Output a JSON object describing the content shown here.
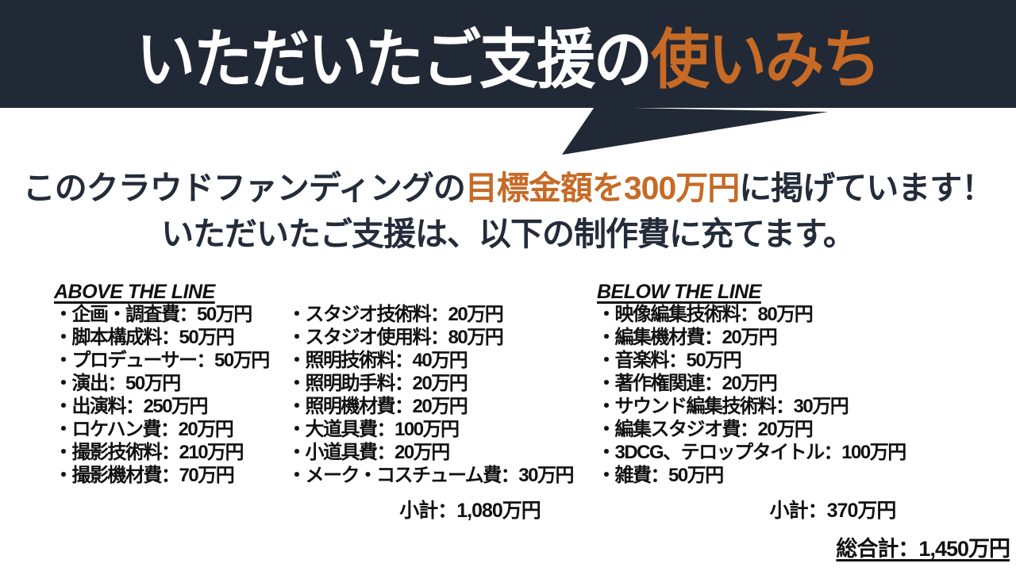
{
  "banner": {
    "title_main": "いただいたご支援の",
    "title_accent": "使いみち"
  },
  "intro": {
    "line1_pre": "このクラウドファンディングの",
    "line1_highlight": "目標金額を300万円",
    "line1_post": "に掲げています！",
    "line2": "いただいたご支援は、以下の制作費に充てます。"
  },
  "sections": {
    "above": {
      "heading": "ABOVE THE LINE",
      "col1": [
        "・企画・調査費：50万円",
        "・脚本構成料：50万円",
        "・プロデューサー：50万円",
        "・演出：50万円",
        "・出演料：250万円",
        "・ロケハン費：20万円",
        "・撮影技術料：210万円",
        "・撮影機材費：70万円"
      ],
      "col2": [
        "・スタジオ技術料：20万円",
        "・スタジオ使用料：80万円",
        "・照明技術料：40万円",
        "・照明助手料：20万円",
        "・照明機材費：20万円",
        "・大道具費：100万円",
        "・小道具費：20万円",
        "・メーク・コスチューム費：30万円"
      ],
      "subtotal": "小計：1,080万円"
    },
    "below": {
      "heading": "BELOW THE LINE",
      "items": [
        "・映像編集技術料：80万円",
        "・編集機材費：20万円",
        "・音楽料：50万円",
        "・著作権関連：20万円",
        "・サウンド編集技術料：30万円",
        "・編集スタジオ費：20万円",
        "・3DCG、テロップタイトル：100万円",
        "・雑費：50万円"
      ],
      "subtotal": "小計：370万円"
    }
  },
  "grand_total": "総合計：1,450万円",
  "colors": {
    "navy": "#222936",
    "navy-text": "#242c3a",
    "orange": "#c66a26",
    "black": "#111111"
  }
}
